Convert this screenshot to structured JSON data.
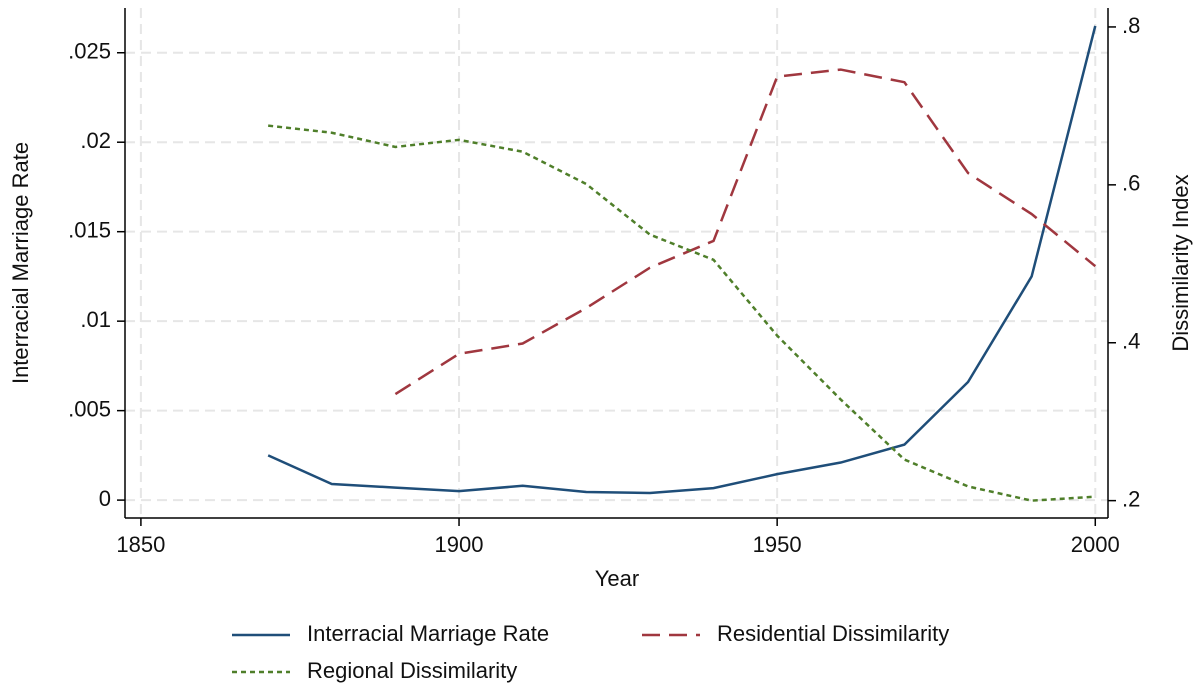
{
  "chart_data": {
    "type": "line",
    "x_label": "Year",
    "y_label": "Interracial Marriage Rate",
    "y2_label": "Dissimilarity Index",
    "x": [
      1870,
      1880,
      1890,
      1900,
      1910,
      1920,
      1930,
      1940,
      1950,
      1960,
      1970,
      1980,
      1990,
      2000
    ],
    "xlim": [
      1847.5,
      2002
    ],
    "xticks": [
      1850,
      1900,
      1950,
      2000
    ],
    "ylim": [
      -0.001,
      0.0275
    ],
    "yticks": [
      0,
      {
        "value": 0.005,
        "label": ".005"
      },
      {
        "value": 0.01,
        "label": ".01"
      },
      {
        "value": 0.015,
        "label": ".015"
      },
      {
        "value": 0.02,
        "label": ".02"
      },
      {
        "value": 0.025,
        "label": ".025"
      }
    ],
    "y2lim": [
      0.178,
      0.824
    ],
    "y2ticks": [
      {
        "value": 0.2,
        "label": ".2"
      },
      {
        "value": 0.4,
        "label": ".4"
      },
      {
        "value": 0.6,
        "label": ".6"
      },
      {
        "value": 0.8,
        "label": ".8"
      }
    ],
    "grid": true,
    "legend": "bottom",
    "series": [
      {
        "name": "Interracial Marriage Rate",
        "color": "#1f4e79",
        "dash": "solid",
        "values": [
          0.0025,
          0.0009,
          0.0007,
          0.0005,
          0.0008,
          0.00045,
          0.0004,
          0.00067,
          0.00145,
          0.0021,
          0.0031,
          0.0066,
          0.0125,
          0.0265
        ]
      },
      {
        "name": "Residential Dissimilarity",
        "color": "#a0373f",
        "dash": "dashed",
        "axis": "y2",
        "values": [
          null,
          null,
          0.335,
          0.386,
          0.399,
          0.444,
          0.495,
          0.529,
          0.737,
          0.746,
          0.73,
          0.615,
          0.563,
          0.497
        ]
      },
      {
        "name": "Regional Dissimilarity",
        "color": "#4f7f2a",
        "dash": "dotted",
        "axis": "y2",
        "values": [
          0.675,
          0.666,
          0.648,
          0.657,
          0.642,
          0.601,
          0.537,
          0.505,
          0.409,
          0.328,
          0.252,
          0.218,
          0.2,
          0.205
        ]
      }
    ]
  }
}
